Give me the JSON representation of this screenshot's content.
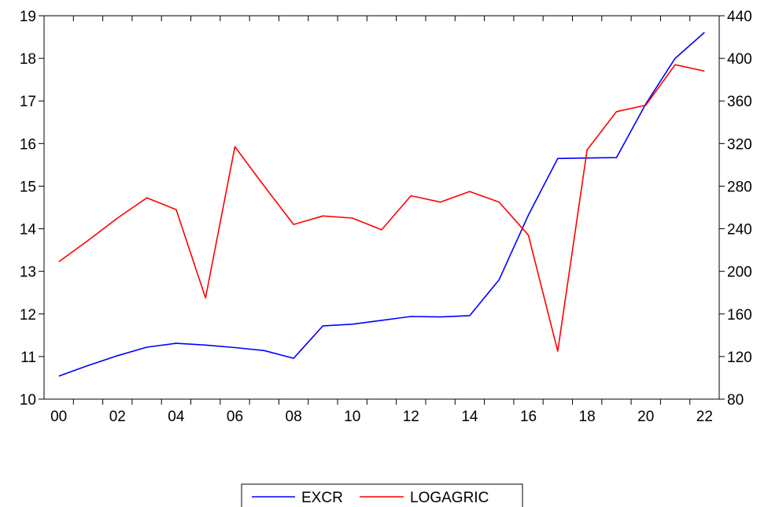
{
  "chart_data": {
    "type": "line",
    "title": "",
    "xlabel": "",
    "ylabel": "",
    "x": [
      2000,
      2001,
      2002,
      2003,
      2004,
      2005,
      2006,
      2007,
      2008,
      2009,
      2010,
      2011,
      2012,
      2013,
      2014,
      2015,
      2016,
      2017,
      2018,
      2019,
      2020,
      2021,
      2022
    ],
    "x_tick_labels": [
      "00",
      "02",
      "04",
      "06",
      "08",
      "10",
      "12",
      "14",
      "16",
      "18",
      "20",
      "22"
    ],
    "y_left": {
      "range": [
        10,
        19
      ],
      "ticks": [
        "10",
        "11",
        "12",
        "13",
        "14",
        "15",
        "16",
        "17",
        "18",
        "19"
      ]
    },
    "y_right": {
      "range": [
        80,
        440
      ],
      "ticks": [
        "80",
        "120",
        "160",
        "200",
        "240",
        "280",
        "320",
        "360",
        "400",
        "440"
      ]
    },
    "grid": false,
    "legend": {
      "placement": "bottom-center"
    },
    "series": [
      {
        "name": "EXCR",
        "axis": "left",
        "color": "#0000ff",
        "values": [
          10.54,
          10.79,
          11.02,
          11.22,
          11.31,
          11.27,
          11.21,
          11.14,
          10.96,
          11.72,
          11.76,
          11.85,
          11.94,
          11.93,
          11.96,
          12.8,
          14.32,
          15.65,
          15.66,
          15.67,
          16.93,
          18.0,
          18.61
        ]
      },
      {
        "name": "LOGAGRIC",
        "axis": "right",
        "color": "#ff0000",
        "values": [
          209,
          229,
          250,
          269,
          258,
          175,
          317,
          280,
          244,
          252,
          250,
          239,
          271,
          265,
          275,
          265,
          234,
          125,
          314,
          350,
          356,
          394,
          388
        ]
      }
    ]
  }
}
